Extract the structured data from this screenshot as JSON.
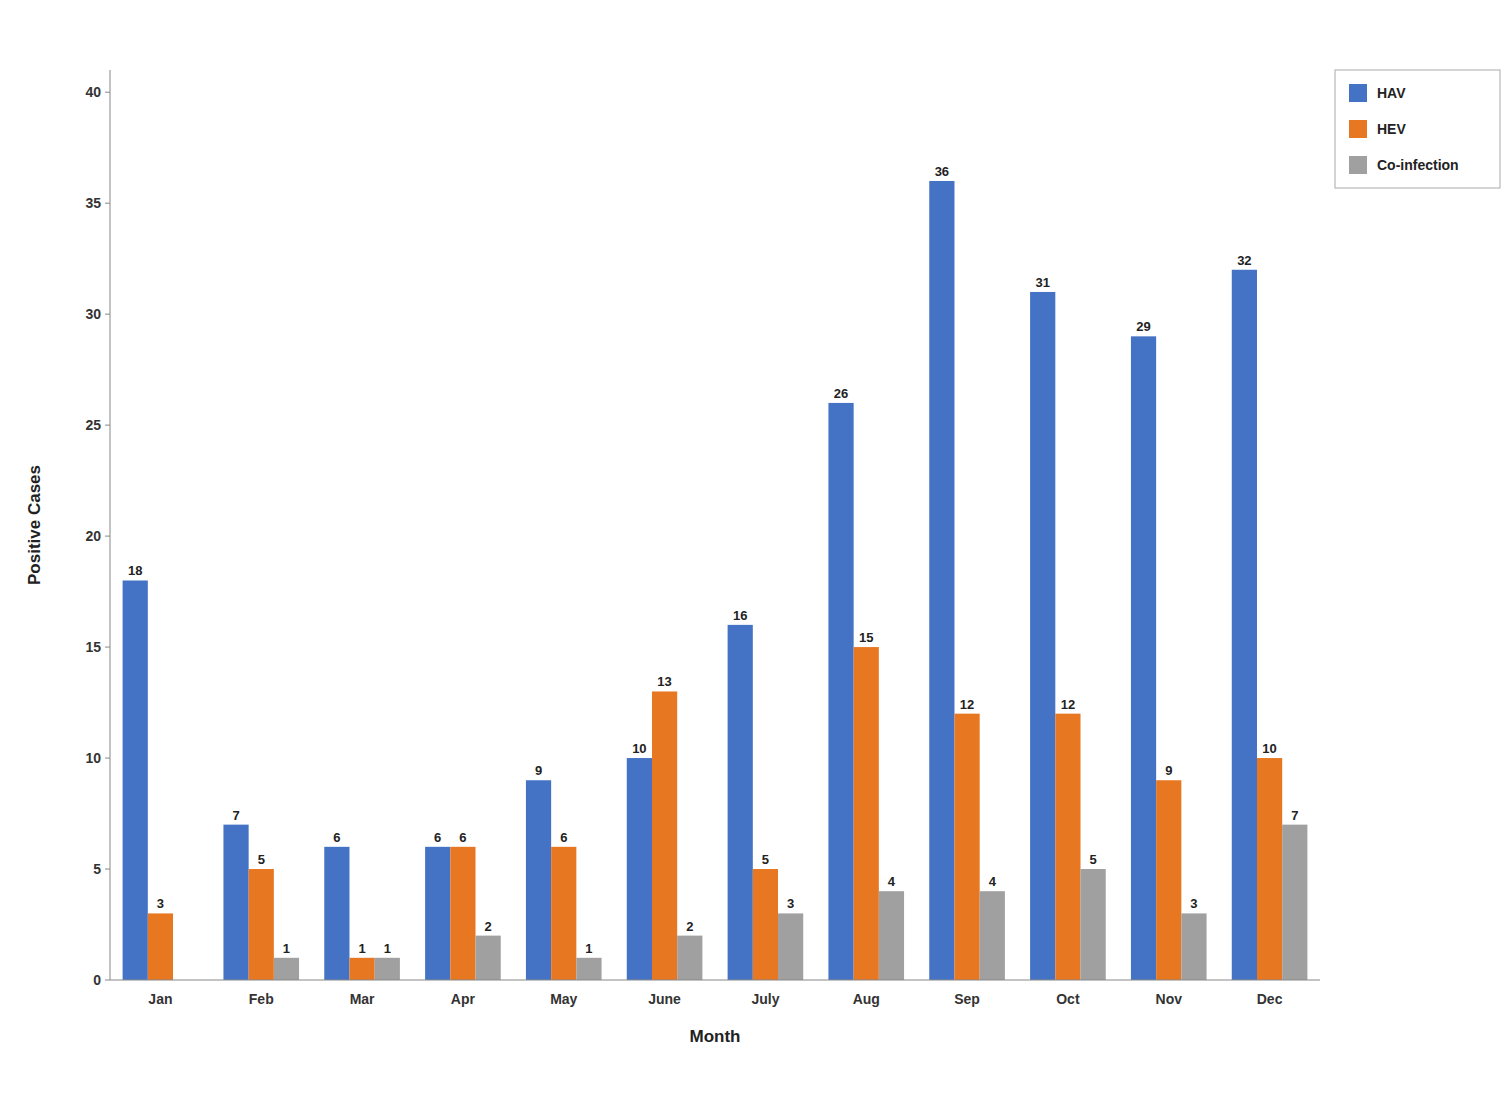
{
  "chart_data": {
    "type": "bar",
    "xlabel": "Month",
    "ylabel": "Positive Cases",
    "categories": [
      "Jan",
      "Feb",
      "Mar",
      "Apr",
      "May",
      "June",
      "July",
      "Aug",
      "Sep",
      "Oct",
      "Nov",
      "Dec"
    ],
    "series": [
      {
        "name": "HAV",
        "color": "#4472C4",
        "values": [
          18,
          7,
          6,
          6,
          9,
          10,
          16,
          26,
          36,
          31,
          29,
          32
        ]
      },
      {
        "name": "HEV",
        "color": "#E87722",
        "values": [
          3,
          5,
          1,
          6,
          6,
          13,
          5,
          15,
          12,
          12,
          9,
          10
        ]
      },
      {
        "name": "Co-infection",
        "color": "#A0A0A0",
        "values": [
          0,
          1,
          1,
          2,
          1,
          2,
          3,
          4,
          4,
          5,
          3,
          7
        ],
        "value_labels": [
          null,
          "1",
          "1",
          "2",
          "1",
          "2",
          "3",
          "4",
          "4",
          "5",
          "3",
          "7"
        ]
      }
    ],
    "ylim": [
      0,
      41
    ],
    "yticks": [
      0,
      5,
      10,
      15,
      20,
      25,
      30,
      35,
      40
    ],
    "grid": false,
    "legend": "upper right",
    "data_labels": true
  }
}
